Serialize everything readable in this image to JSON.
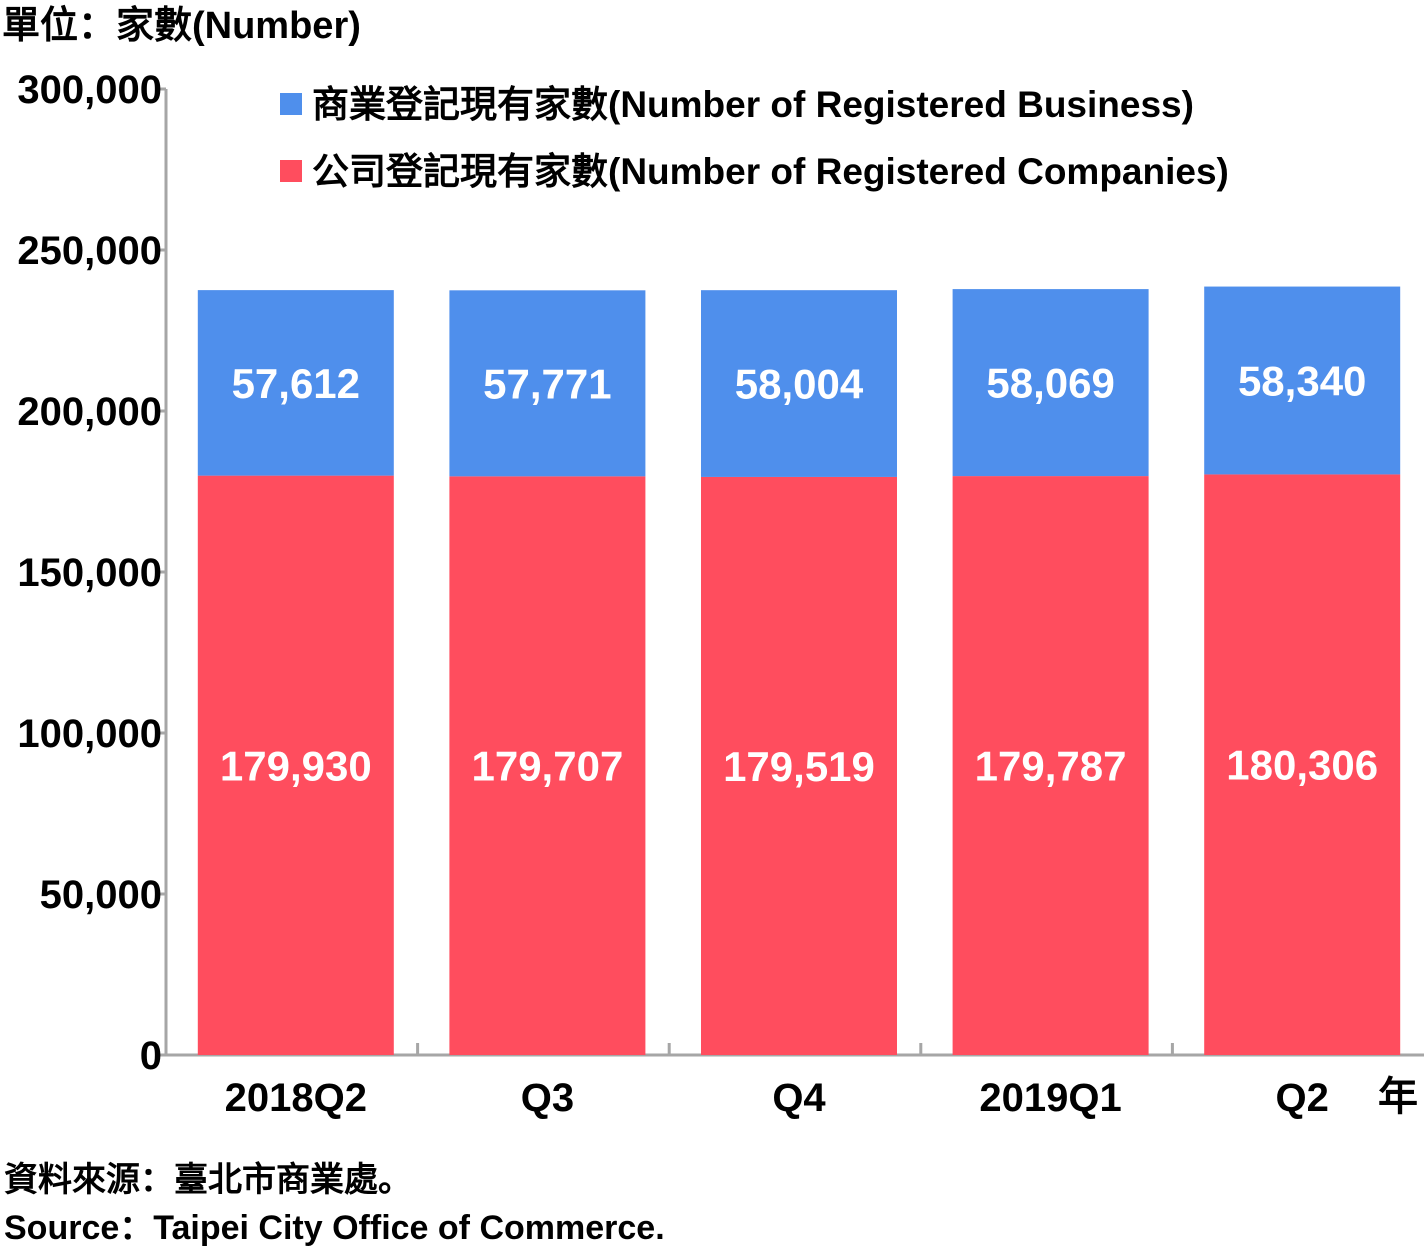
{
  "chart_data": {
    "type": "bar",
    "stacked": true,
    "unit_label": "單位：家數(Number)",
    "categories": [
      "2018Q2",
      "Q3",
      "Q4",
      "2019Q1",
      "Q2"
    ],
    "x_unit": "年",
    "ylim": [
      0,
      300000
    ],
    "yticks": [
      0,
      50000,
      100000,
      150000,
      200000,
      250000,
      300000
    ],
    "ytick_labels": [
      "0",
      "50,000",
      "100,000",
      "150,000",
      "200,000",
      "250,000",
      "300,000"
    ],
    "legend_position": "top",
    "grid": false,
    "series": [
      {
        "name": "公司登記現有家數(Number of Registered Companies)",
        "color": "#ff4d5e",
        "values": [
          179930,
          179707,
          179519,
          179787,
          180306
        ],
        "labels": [
          "179,930",
          "179,707",
          "179,519",
          "179,787",
          "180,306"
        ]
      },
      {
        "name": "商業登記現有家數(Number of Registered Business)",
        "color": "#4f8fec",
        "values": [
          57612,
          57771,
          58004,
          58069,
          58340
        ],
        "labels": [
          "57,612",
          "57,771",
          "58,004",
          "58,069",
          "58,340"
        ]
      }
    ]
  },
  "source": {
    "zh": "資料來源：臺北市商業處。",
    "en": "Source：Taipei City Office of Commerce."
  }
}
